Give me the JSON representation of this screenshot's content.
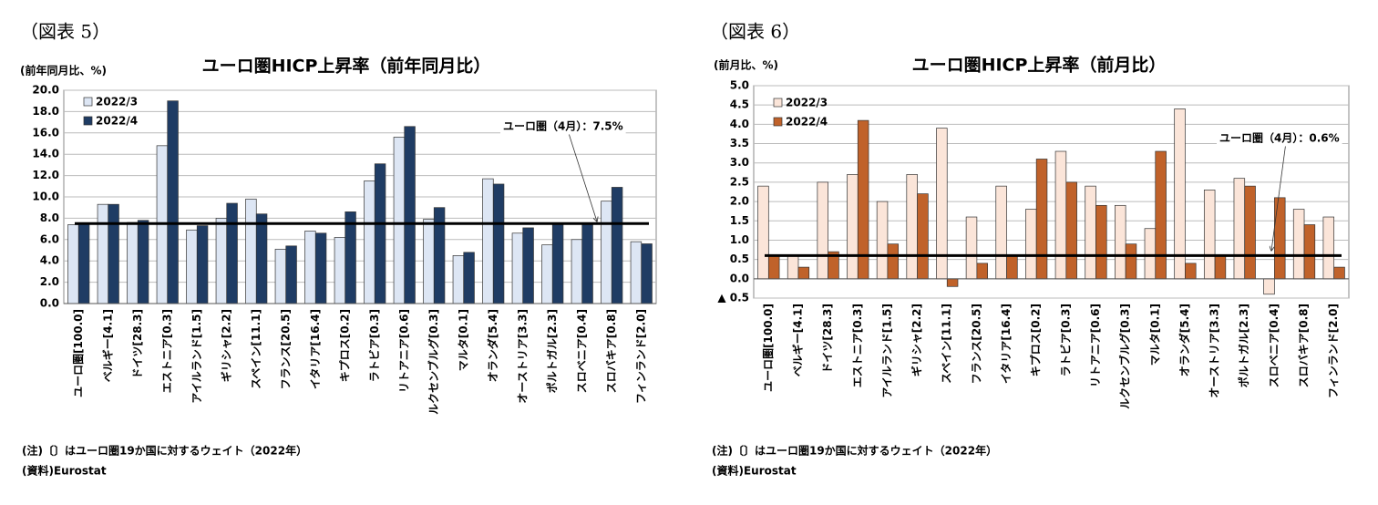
{
  "chart_data": [
    {
      "type": "bar",
      "figure_label": "（図表 5）",
      "title": "ユーロ圏HICP上昇率（前年同月比）",
      "y_label": "(前年同月比、%)",
      "categories": [
        "ユーロ圏[100.0]",
        "ベルギー[4.1]",
        "ドイツ[28.3]",
        "エストニア[0.3]",
        "アイルランド[1.5]",
        "ギリシャ[2.2]",
        "スペイン[11.1]",
        "フランス[20.5]",
        "イタリア[16.4]",
        "キプロス[0.2]",
        "ラトビア[0.3]",
        "リトアニア[0.6]",
        "ルクセンブルグ[0.3]",
        "マルタ[0.1]",
        "オランダ[5.4]",
        "オーストリア[3.3]",
        "ポルトガル[2.3]",
        "スロベニア[0.4]",
        "スロバキア[0.8]",
        "フィンランド[2.0]"
      ],
      "series": [
        {
          "name": "2022/3",
          "color": "#dde6f4",
          "values": [
            7.4,
            9.3,
            7.6,
            14.8,
            6.9,
            8.0,
            9.8,
            5.1,
            6.8,
            6.2,
            11.5,
            15.6,
            7.9,
            4.5,
            11.7,
            6.6,
            5.5,
            6.0,
            9.6,
            5.8
          ]
        },
        {
          "name": "2022/4",
          "color": "#1f3c64",
          "values": [
            7.5,
            9.3,
            7.8,
            19.0,
            7.3,
            9.4,
            8.4,
            5.4,
            6.6,
            8.6,
            13.1,
            16.6,
            9.0,
            4.8,
            11.2,
            7.1,
            7.4,
            7.4,
            10.9,
            5.6
          ]
        }
      ],
      "ylim": [
        0,
        20
      ],
      "yticks": [
        {
          "value": 0,
          "label": "0.0"
        },
        {
          "value": 2,
          "label": "2.0"
        },
        {
          "value": 4,
          "label": "4.0"
        },
        {
          "value": 6,
          "label": "6.0"
        },
        {
          "value": 8,
          "label": "8.0"
        },
        {
          "value": 10,
          "label": "10.0"
        },
        {
          "value": 12,
          "label": "12.0"
        },
        {
          "value": 14,
          "label": "14.0"
        },
        {
          "value": 16,
          "label": "16.0"
        },
        {
          "value": 18,
          "label": "18.0"
        },
        {
          "value": 20,
          "label": "20.0"
        }
      ],
      "grid": true,
      "legend": "top-left",
      "reference_line": {
        "value": 7.5,
        "label": "ユーロ圏（4月）：7.5%"
      },
      "notes": [
        "(注)〔〕はユーロ圏19か国に対するウェイト（2022年）",
        "(資料)Eurostat"
      ]
    },
    {
      "type": "bar",
      "figure_label": "（図表 6）",
      "title": "ユーロ圏HICP上昇率（前月比）",
      "y_label": "(前月比、%)",
      "categories": [
        "ユーロ圏[100.0]",
        "ベルギー[4.1]",
        "ドイツ[28.3]",
        "エストニア[0.3]",
        "アイルランド[1.5]",
        "ギリシャ[2.2]",
        "スペイン[11.1]",
        "フランス[20.5]",
        "イタリア[16.4]",
        "キプロス[0.2]",
        "ラトビア[0.3]",
        "リトアニア[0.6]",
        "ルクセンブルグ[0.3]",
        "マルタ[0.1]",
        "オランダ[5.4]",
        "オーストリア[3.3]",
        "ポルトガル[2.3]",
        "スロベニア[0.4]",
        "スロバキア[0.8]",
        "フィンランド[2.0]"
      ],
      "series": [
        {
          "name": "2022/3",
          "color": "#fbe5d9",
          "values": [
            2.4,
            0.6,
            2.5,
            2.7,
            2.0,
            2.7,
            3.9,
            1.6,
            2.4,
            1.8,
            3.3,
            2.4,
            1.9,
            1.3,
            4.4,
            2.3,
            2.6,
            -0.4,
            1.8,
            1.6
          ]
        },
        {
          "name": "2022/4",
          "color": "#c0622a",
          "values": [
            0.6,
            0.3,
            0.7,
            4.1,
            0.9,
            2.2,
            -0.2,
            0.4,
            0.6,
            3.1,
            2.5,
            1.9,
            0.9,
            3.3,
            0.4,
            0.6,
            2.4,
            2.1,
            1.4,
            0.3
          ]
        }
      ],
      "ylim": [
        -0.5,
        5
      ],
      "yticks": [
        {
          "value": -0.5,
          "label": "▲ 0.5"
        },
        {
          "value": 0,
          "label": "0.0"
        },
        {
          "value": 0.5,
          "label": "0.5"
        },
        {
          "value": 1,
          "label": "1.0"
        },
        {
          "value": 1.5,
          "label": "1.5"
        },
        {
          "value": 2,
          "label": "2.0"
        },
        {
          "value": 2.5,
          "label": "2.5"
        },
        {
          "value": 3,
          "label": "3.0"
        },
        {
          "value": 3.5,
          "label": "3.5"
        },
        {
          "value": 4,
          "label": "4.0"
        },
        {
          "value": 4.5,
          "label": "4.5"
        },
        {
          "value": 5,
          "label": "5.0"
        }
      ],
      "grid": true,
      "legend": "top-left",
      "reference_line": {
        "value": 0.6,
        "label": "ユーロ圏（4月）：0.6%"
      },
      "notes": [
        "(注)〔〕はユーロ圏19か国に対するウェイト（2022年）",
        "(資料)Eurostat"
      ]
    }
  ]
}
